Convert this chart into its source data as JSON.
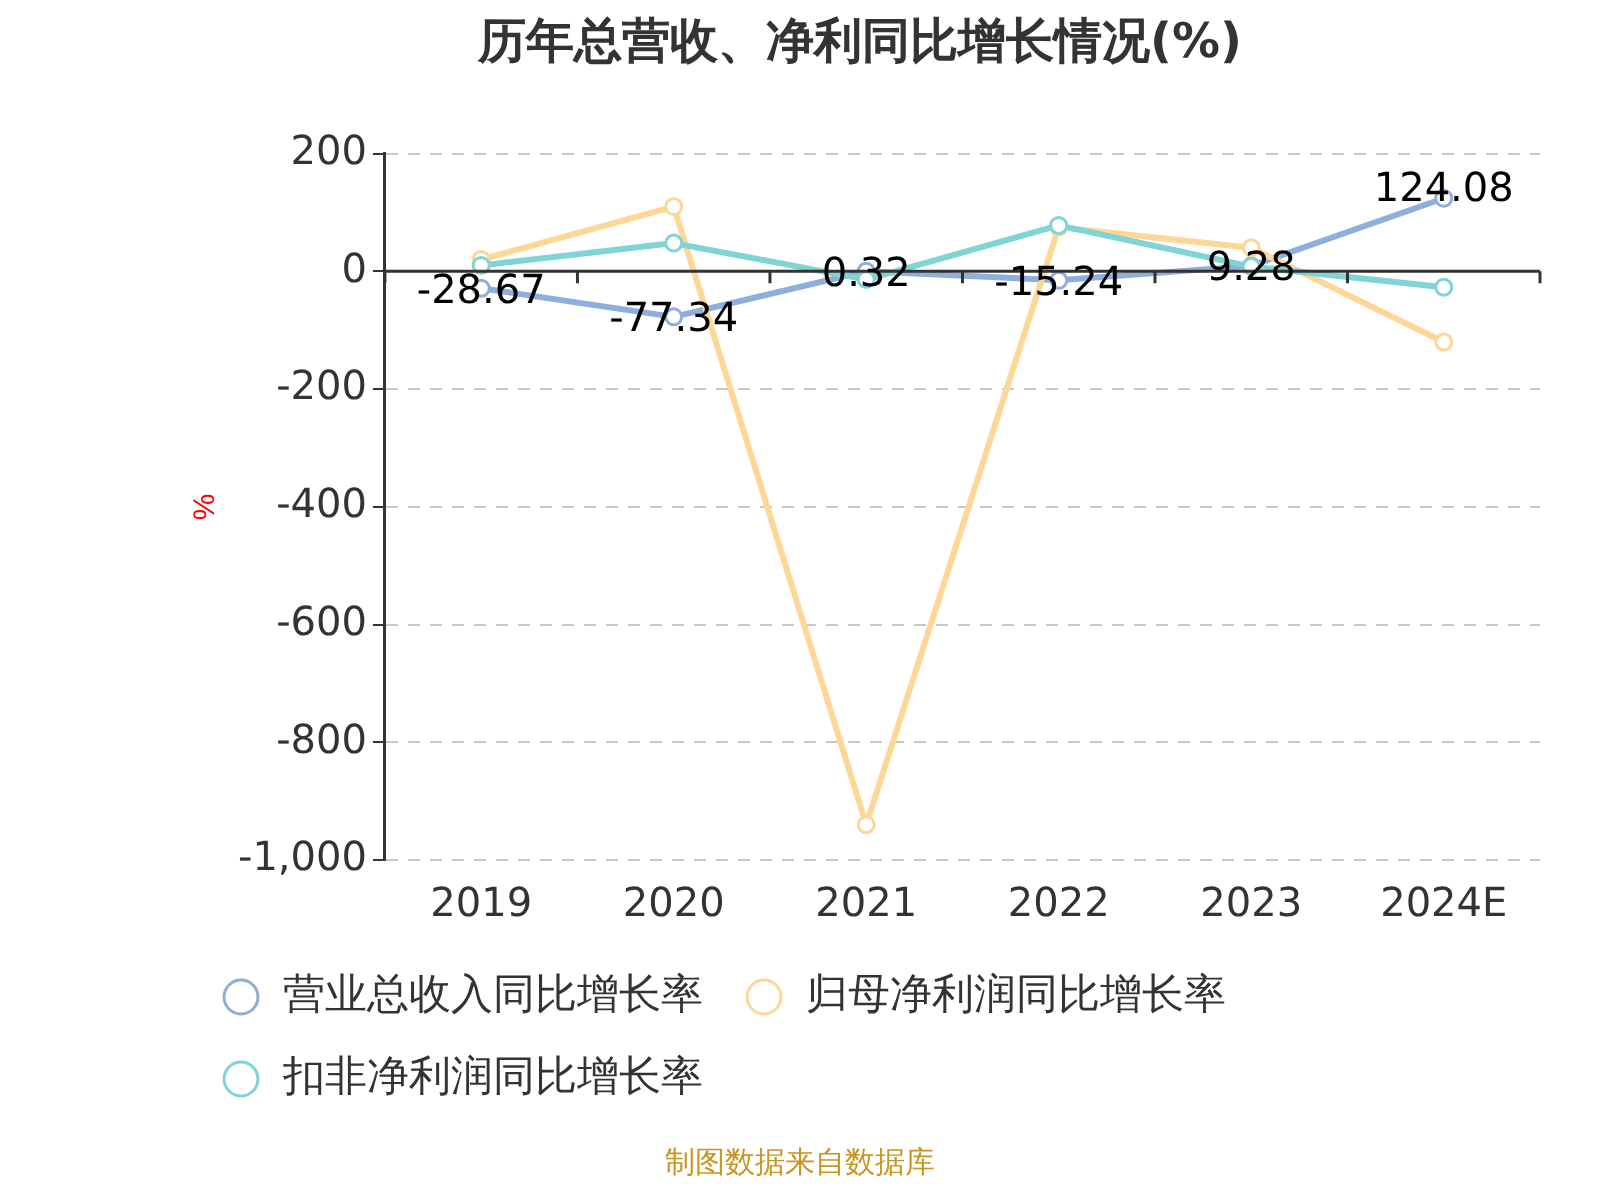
{
  "chart_data": {
    "type": "line",
    "title": "历年总营收、净利同比增长情况(%)",
    "ylabel": "%",
    "categories": [
      "2019",
      "2020",
      "2021",
      "2022",
      "2023",
      "2024E"
    ],
    "series": [
      {
        "name": "营业总收入同比增长率",
        "color": "#8eaedc",
        "values": [
          -28.67,
          -77.34,
          0.32,
          -15.24,
          9.28,
          124.08
        ],
        "value_labels": [
          "-28.67",
          "-77.34",
          "0.32",
          "-15.24",
          "9.28",
          "124.08"
        ]
      },
      {
        "name": "归母净利润同比增长率",
        "color": "#fdd797",
        "values": [
          20,
          110,
          -940,
          75,
          40,
          -120
        ]
      },
      {
        "name": "扣非净利润同比增长率",
        "color": "#7fd4d6",
        "values": [
          10,
          48,
          -14,
          78,
          8,
          -27
        ]
      }
    ],
    "ylim": [
      -1000,
      200
    ],
    "yticks": [
      {
        "value": -1000,
        "label": "-1,000"
      },
      -800,
      -600,
      -400,
      -200,
      0,
      200
    ],
    "grid": "y",
    "legend": "bottom",
    "marker": "circle",
    "line_style": "solid",
    "annotations": [
      "制图数据来自数据库"
    ]
  }
}
